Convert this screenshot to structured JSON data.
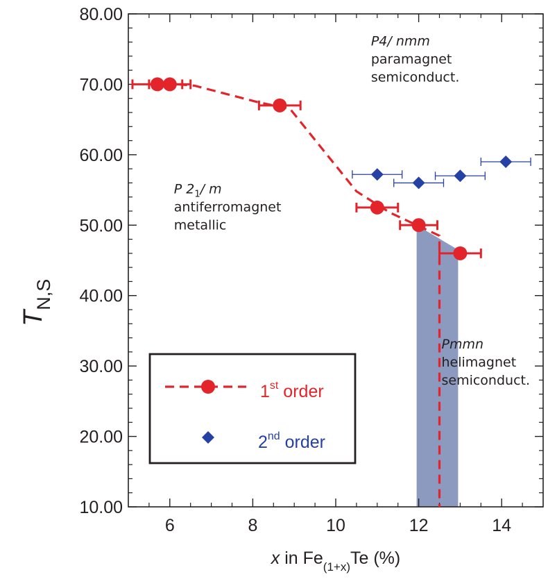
{
  "chart_data": {
    "type": "scatter",
    "title": "",
    "xlabel": {
      "italic": "x",
      "text": " in Fe",
      "sub": "(1+x)",
      "tail": "Te (%)"
    },
    "ylabel": {
      "main": "T",
      "sub": "N,S"
    },
    "xlim": [
      5,
      15
    ],
    "ylim": [
      10,
      80
    ],
    "xticks": [
      6,
      8,
      10,
      12,
      14
    ],
    "yticks": [
      10,
      20,
      30,
      40,
      50,
      60,
      70,
      80
    ],
    "ytick_labels": [
      "10.00",
      "20.00",
      "30.00",
      "40.00",
      "50.00",
      "60.00",
      "70.00",
      "80.00"
    ],
    "series": [
      {
        "name": "1st order",
        "marker": "circle",
        "color": "#e3242b",
        "line": "dashed",
        "points": [
          {
            "x": 5.7,
            "y": 70,
            "xerr": 0.6
          },
          {
            "x": 6.0,
            "y": 70,
            "xerr": 0.5
          },
          {
            "x": 8.65,
            "y": 67,
            "xerr": 0.5
          },
          {
            "x": 11.0,
            "y": 52.5,
            "xerr": 0.5
          },
          {
            "x": 12.0,
            "y": 50,
            "xerr": 0.45
          },
          {
            "x": 13.0,
            "y": 46,
            "xerr": 0.5
          }
        ],
        "dashed_path": [
          [
            6.2,
            70
          ],
          [
            6.6,
            69.8
          ],
          [
            8.1,
            67.5
          ],
          [
            8.9,
            66.5
          ],
          [
            10.5,
            54.8
          ],
          [
            11.3,
            51.8
          ],
          [
            12.5,
            48.5
          ],
          [
            12.5,
            10
          ]
        ]
      },
      {
        "name": "2nd order",
        "marker": "diamond",
        "color": "#2541a3",
        "line": "none",
        "points": [
          {
            "x": 11.0,
            "y": 57.2,
            "xerr": 0.6
          },
          {
            "x": 12.0,
            "y": 56.0,
            "xerr": 0.6
          },
          {
            "x": 13.0,
            "y": 57.0,
            "xerr": 0.6
          },
          {
            "x": 14.1,
            "y": 59.0,
            "xerr": 0.6
          }
        ]
      }
    ],
    "shaded_region": {
      "color": "#8d9ac0",
      "vertices": [
        [
          11.95,
          10
        ],
        [
          11.95,
          50
        ],
        [
          12.95,
          46.5
        ],
        [
          12.95,
          10
        ]
      ]
    },
    "annotations": [
      {
        "lines": [
          {
            "italic": "P4/ nmm"
          },
          {
            "text": "paramagnet"
          },
          {
            "text": "semiconduct."
          }
        ],
        "x": 10.85,
        "y": 75.5
      },
      {
        "lines": [
          {
            "italic": "P 2",
            "sub": "1",
            "italic2": "/ m"
          },
          {
            "text": "antiferromagnet"
          },
          {
            "text": "metallic"
          }
        ],
        "x": 6.1,
        "y": 54.5
      },
      {
        "lines": [
          {
            "italic": "Pmmn"
          },
          {
            "text": "helimagnet"
          },
          {
            "text": "semiconduct."
          }
        ],
        "x": 12.55,
        "y": 32.5
      }
    ],
    "legend": {
      "position": "lower-left",
      "entries": [
        {
          "label": "1",
          "sup": "st",
          "tail": " order",
          "color": "#e3242b"
        },
        {
          "label": "2",
          "sup": "nd",
          "tail": " order",
          "color": "#2541a3"
        }
      ]
    }
  }
}
